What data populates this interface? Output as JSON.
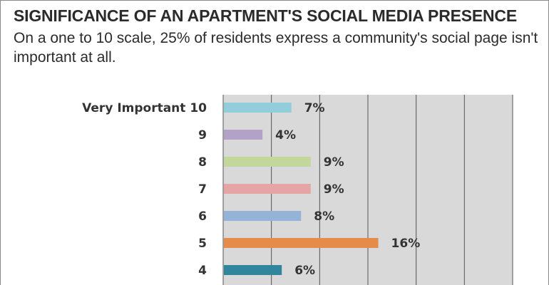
{
  "title": "SIGNIFICANCE OF AN APARTMENT'S SOCIAL MEDIA PRESENCE",
  "subtitle": "On a one to 10 scale, 25% of residents express a community's social page isn't important at all.",
  "chart_data": {
    "type": "bar",
    "orientation": "horizontal",
    "categories": [
      "Very Important 10",
      "9",
      "8",
      "7",
      "6",
      "5",
      "4"
    ],
    "values": [
      7,
      4,
      9,
      9,
      8,
      16,
      6
    ],
    "value_labels": [
      "7%",
      "4%",
      "9%",
      "9%",
      "8%",
      "16%",
      "6%"
    ],
    "colors": [
      "#92cddc",
      "#b3a2c7",
      "#c3d69b",
      "#e6a5a5",
      "#95b3d7",
      "#e58c4a",
      "#31859c"
    ],
    "xlim": [
      0,
      30
    ],
    "grid": true,
    "plot_background": "#d9d9d9",
    "legend": "none"
  }
}
